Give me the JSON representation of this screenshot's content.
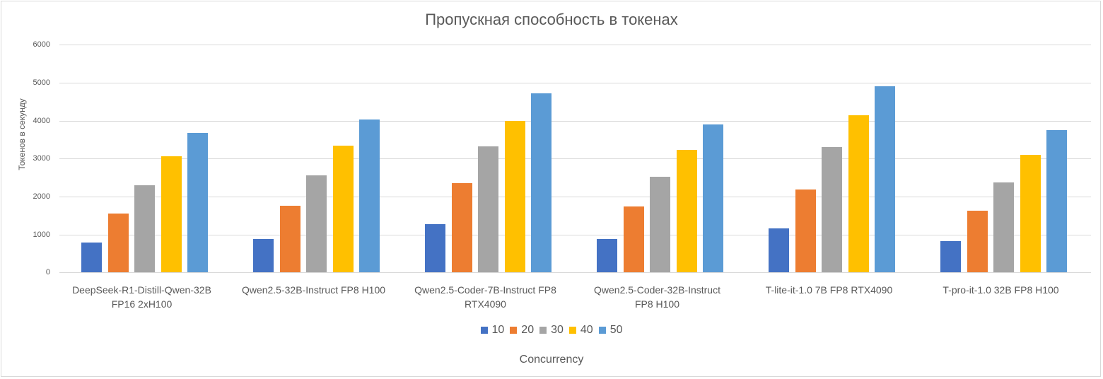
{
  "chart_data": {
    "type": "bar",
    "title": "Пропускная способность в токенах",
    "xlabel": "Concurrency",
    "ylabel": "Токенов в секунду",
    "ylim": [
      0,
      6000
    ],
    "yticks": [
      0,
      1000,
      2000,
      3000,
      4000,
      5000,
      6000
    ],
    "grid": true,
    "legend_position": "bottom",
    "categories": [
      "DeepSeek-R1-Distill-Qwen-32B FP16 2xH100",
      "Qwen2.5-32B-Instruct FP8 H100",
      "Qwen2.5-Coder-7B-Instruct FP8 RTX4090",
      "Qwen2.5-Coder-32B-Instruct FP8 H100",
      "T-lite-it-1.0 7B FP8 RTX4090",
      "T-pro-it-1.0 32B FP8 H100"
    ],
    "category_lines": [
      [
        "DeepSeek-R1-Distill-Qwen-32B",
        "FP16 2xH100"
      ],
      [
        "Qwen2.5-32B-Instruct FP8 H100",
        ""
      ],
      [
        "Qwen2.5-Coder-7B-Instruct FP8",
        "RTX4090"
      ],
      [
        "Qwen2.5-Coder-32B-Instruct",
        "FP8 H100"
      ],
      [
        "T-lite-it-1.0 7B FP8 RTX4090",
        ""
      ],
      [
        "T-pro-it-1.0 32B FP8 H100",
        ""
      ]
    ],
    "series": [
      {
        "name": "10",
        "color": "#4472c4",
        "values": [
          780,
          890,
          1280,
          890,
          1160,
          820
        ]
      },
      {
        "name": "20",
        "color": "#ed7d31",
        "values": [
          1560,
          1760,
          2350,
          1730,
          2190,
          1620
        ]
      },
      {
        "name": "30",
        "color": "#a5a5a5",
        "values": [
          2290,
          2550,
          3320,
          2520,
          3300,
          2370
        ]
      },
      {
        "name": "40",
        "color": "#ffc000",
        "values": [
          3060,
          3340,
          4000,
          3230,
          4140,
          3100
        ]
      },
      {
        "name": "50",
        "color": "#5b9bd5",
        "values": [
          3680,
          4040,
          4720,
          3910,
          4900,
          3750
        ]
      }
    ]
  }
}
